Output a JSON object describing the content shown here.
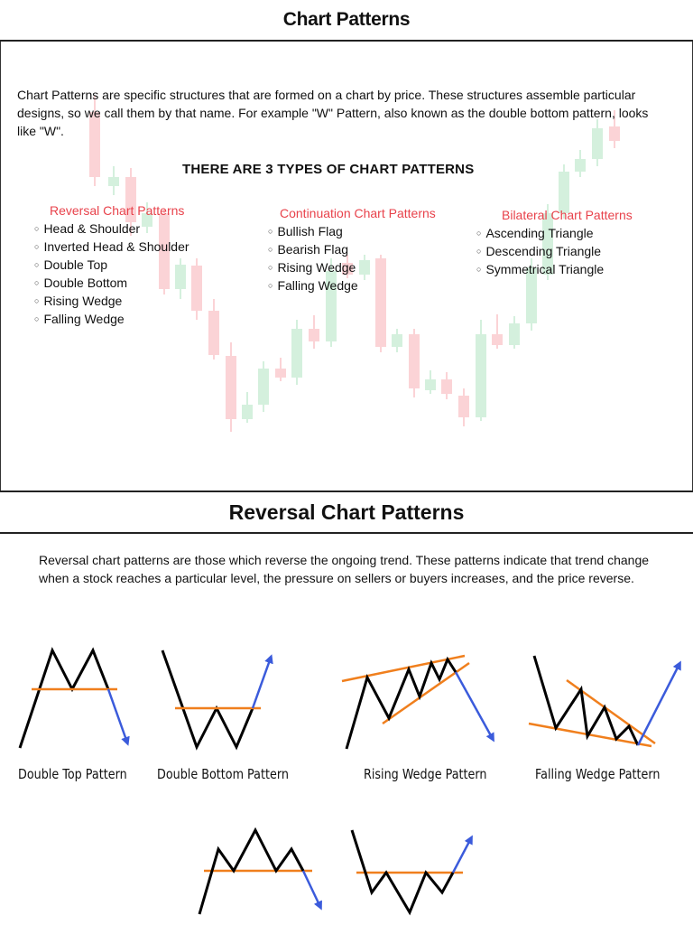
{
  "top": {
    "title": "Chart Patterns",
    "intro": "Chart Patterns are specific structures that are formed on a chart by price. These structures assemble particular designs, so we call them by that name. For example \"W\" Pattern, also known as the double bottom pattern, looks like \"W\".",
    "types_heading": "THERE ARE 3 TYPES OF CHART PATTERNS",
    "categories": [
      {
        "title": "Reversal Chart Patterns",
        "items": [
          "Head & Shoulder",
          "Inverted Head & Shoulder",
          "Double Top",
          "Double Bottom",
          "Rising Wedge",
          "Falling Wedge"
        ]
      },
      {
        "title": "Continuation Chart Patterns",
        "items": [
          "Bullish Flag",
          "Bearish Flag",
          "Rising Wedge",
          "Falling Wedge"
        ]
      },
      {
        "title": "Bilateral Chart Patterns",
        "items": [
          "Ascending Triangle",
          "Descending Triangle",
          "Symmetrical Triangle"
        ]
      }
    ]
  },
  "reversal": {
    "title": "Reversal Chart Patterns",
    "description": "Reversal chart patterns are those which reverse the ongoing trend. These patterns indicate that trend change when a stock reaches a particular level, the pressure on sellers or buyers increases, and the price reverse.",
    "captions": [
      "Double Top Pattern",
      "Double Bottom Pattern",
      "Rising Wedge Pattern",
      "Falling Wedge Pattern"
    ]
  },
  "colors": {
    "accent_red": "#e8424b",
    "line_orange": "#f07f1d",
    "arrow_blue": "#3b5bdb",
    "candle_red": "#fbd3d6",
    "candle_green": "#d4f0dd"
  }
}
